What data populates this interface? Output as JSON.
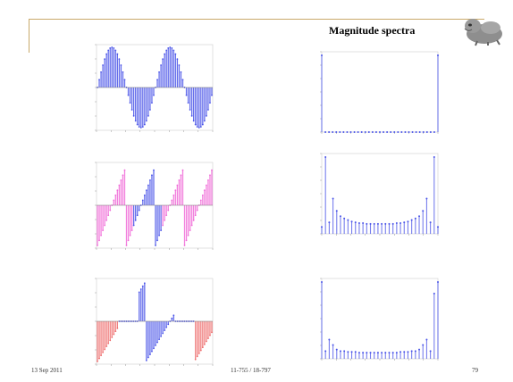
{
  "slide": {
    "title": "Magnitude spectra",
    "footer": {
      "date": "13 Sep 2011",
      "course": "11-755 / 18-797",
      "page": "79"
    }
  },
  "colors": {
    "blue": "#4a54e8",
    "pink": "#f06ad8",
    "red": "#ee6a6a",
    "accent": "#c9a96a"
  },
  "chart_data": [
    {
      "type": "bar",
      "name": "signal-1",
      "cycles": 2,
      "coloring": "blue",
      "ylim": [
        -1,
        1
      ],
      "xlim": [
        0,
        64
      ]
    },
    {
      "type": "bar",
      "name": "signal-2",
      "cycles": 4,
      "coloring": "pink-with-blue-window",
      "ylim": [
        -1,
        1
      ],
      "xlim": [
        0,
        64
      ]
    },
    {
      "type": "bar",
      "name": "signal-3",
      "cycles": 2,
      "coloring": "red-ends-blue-middle",
      "ylim": [
        -1,
        1
      ],
      "xlim": [
        0,
        64
      ]
    },
    {
      "type": "bar",
      "name": "spectrum-1",
      "xlim": [
        0,
        64
      ],
      "values": [
        100,
        0,
        0,
        0,
        0,
        0,
        0,
        0,
        0,
        0,
        0,
        0,
        0,
        0,
        0,
        0,
        0,
        0,
        0,
        0,
        0,
        0,
        0,
        0,
        0,
        0,
        0,
        0,
        0,
        0,
        0,
        0,
        100
      ]
    },
    {
      "type": "bar",
      "name": "spectrum-2",
      "xlim": [
        0,
        64
      ],
      "values": [
        9,
        100,
        15,
        46,
        30,
        23,
        20,
        18,
        16,
        15,
        14,
        14,
        13,
        13,
        13,
        13,
        13,
        13,
        13,
        13,
        14,
        14,
        15,
        16,
        18,
        20,
        23,
        30,
        46,
        15,
        100,
        9
      ]
    },
    {
      "type": "bar",
      "name": "spectrum-3",
      "xlim": [
        0,
        64
      ],
      "values": [
        100,
        10,
        25,
        18,
        12,
        10,
        10,
        9,
        9,
        9,
        8,
        8,
        8,
        8,
        8,
        8,
        8,
        8,
        8,
        8,
        8,
        9,
        9,
        9,
        10,
        10,
        12,
        18,
        25,
        10,
        85,
        100
      ]
    }
  ]
}
